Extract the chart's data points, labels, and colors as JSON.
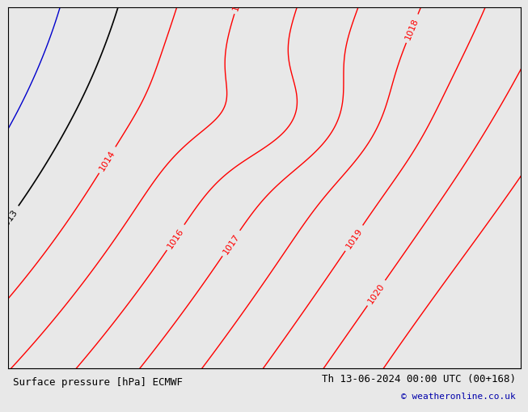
{
  "title_left": "Surface pressure [hPa] ECMWF",
  "title_right": "Th 13-06-2024 00:00 UTC (00+168)",
  "copyright": "© weatheronline.co.uk",
  "bg_color": "#e8e8e8",
  "land_color": "#b8f0b0",
  "land_border_color": "#909090",
  "contour_color_red": "#ff0000",
  "contour_color_black": "#000000",
  "contour_color_blue": "#0000cc",
  "label_fontsize": 8,
  "title_fontsize": 9,
  "map_extent": [
    -12.0,
    4.0,
    48.5,
    61.5
  ]
}
